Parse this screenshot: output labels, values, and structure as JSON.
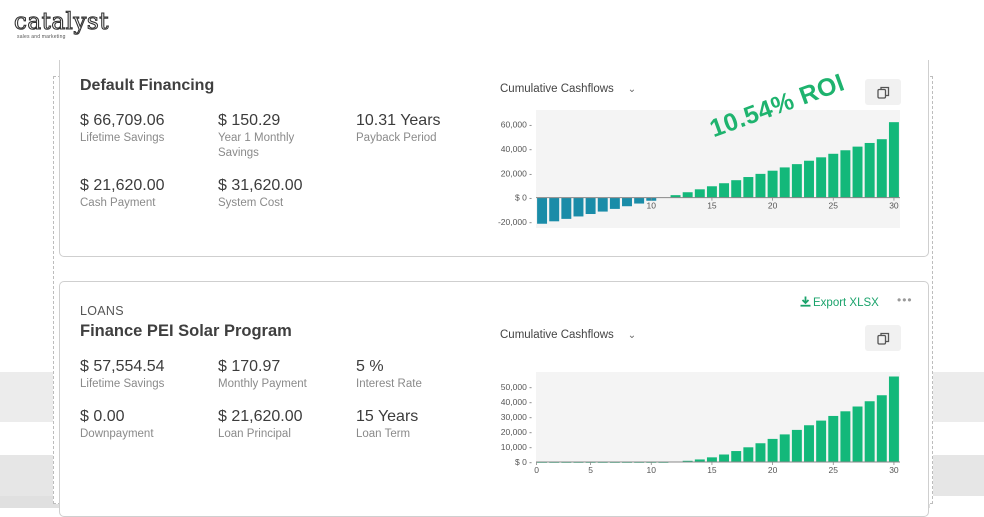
{
  "logo": {
    "name": "catalyst",
    "tagline": "sales and marketing"
  },
  "card1": {
    "title": "Default Financing",
    "stats": [
      {
        "value": "$ 66,709.06",
        "label": "Lifetime Savings"
      },
      {
        "value": "$ 150.29",
        "label": "Year 1 Monthly Savings"
      },
      {
        "value": "10.31 Years",
        "label": "Payback Period"
      },
      {
        "value": "$ 21,620.00",
        "label": "Cash Payment"
      },
      {
        "value": "$ 31,620.00",
        "label": "System Cost"
      }
    ],
    "dropdown": "Cumulative Cashflows",
    "roi": "10.54% ROI"
  },
  "card2": {
    "kicker": "LOANS",
    "title": "Finance PEI Solar Program",
    "export_label": "Export XLSX",
    "more": "•••",
    "stats": [
      {
        "value": "$ 57,554.54",
        "label": "Lifetime Savings"
      },
      {
        "value": "$ 170.97",
        "label": "Monthly Payment"
      },
      {
        "value": "5 %",
        "label": "Interest Rate"
      },
      {
        "value": "$ 0.00",
        "label": "Downpayment"
      },
      {
        "value": "$ 21,620.00",
        "label": "Loan Principal"
      },
      {
        "value": "15 Years",
        "label": "Loan Term"
      }
    ],
    "dropdown": "Cumulative Cashflows"
  },
  "colors": {
    "positive": "#13b87a",
    "negative": "#1a8ca8",
    "accent": "#1eb36e"
  },
  "icons": {
    "copy": "copy-icon",
    "export": "download-icon",
    "dropdown": "chevron-down-icon"
  },
  "chart_data": [
    {
      "type": "bar",
      "x": [
        1,
        2,
        3,
        4,
        5,
        6,
        7,
        8,
        9,
        10,
        11,
        12,
        13,
        14,
        15,
        16,
        17,
        18,
        19,
        20,
        21,
        22,
        23,
        24,
        25,
        26,
        27,
        28,
        29,
        30
      ],
      "values": [
        -21500,
        -19500,
        -17500,
        -15500,
        -13500,
        -11500,
        -9300,
        -7100,
        -4900,
        -2600,
        -300,
        2000,
        4400,
        6800,
        9300,
        11800,
        14300,
        16900,
        19500,
        22100,
        24800,
        27500,
        30300,
        33100,
        36000,
        38900,
        41900,
        44900,
        48000,
        62000
      ],
      "xticks": [
        10,
        15,
        20,
        25,
        30
      ],
      "yticks": [
        "60,000 -",
        "40,000 -",
        "20,000 -",
        "$ 0 -",
        "-20,000 -"
      ],
      "ytick_values": [
        60000,
        40000,
        20000,
        0,
        -20000
      ],
      "ylim": [
        -25000,
        72000
      ],
      "xlabel": "",
      "ylabel": ""
    },
    {
      "type": "bar",
      "x": [
        1,
        2,
        3,
        4,
        5,
        6,
        7,
        8,
        9,
        10,
        11,
        12,
        13,
        14,
        15,
        16,
        17,
        18,
        19,
        20,
        21,
        22,
        23,
        24,
        25,
        26,
        27,
        28,
        29,
        30
      ],
      "values": [
        0,
        0,
        0,
        0,
        0,
        0,
        0,
        0,
        0,
        0,
        0,
        200,
        800,
        1700,
        3100,
        5000,
        7300,
        9800,
        12500,
        15400,
        18400,
        21400,
        24500,
        27600,
        30700,
        33800,
        37000,
        40500,
        44500,
        57000
      ],
      "xticks": [
        0,
        5,
        10,
        15,
        20,
        25,
        30
      ],
      "yticks": [
        "50,000 -",
        "40,000 -",
        "30,000 -",
        "20,000 -",
        "10,000 -",
        "$ 0 -"
      ],
      "ytick_values": [
        50000,
        40000,
        30000,
        20000,
        10000,
        0
      ],
      "ylim": [
        0,
        60000
      ],
      "xlabel": "",
      "ylabel": ""
    }
  ]
}
